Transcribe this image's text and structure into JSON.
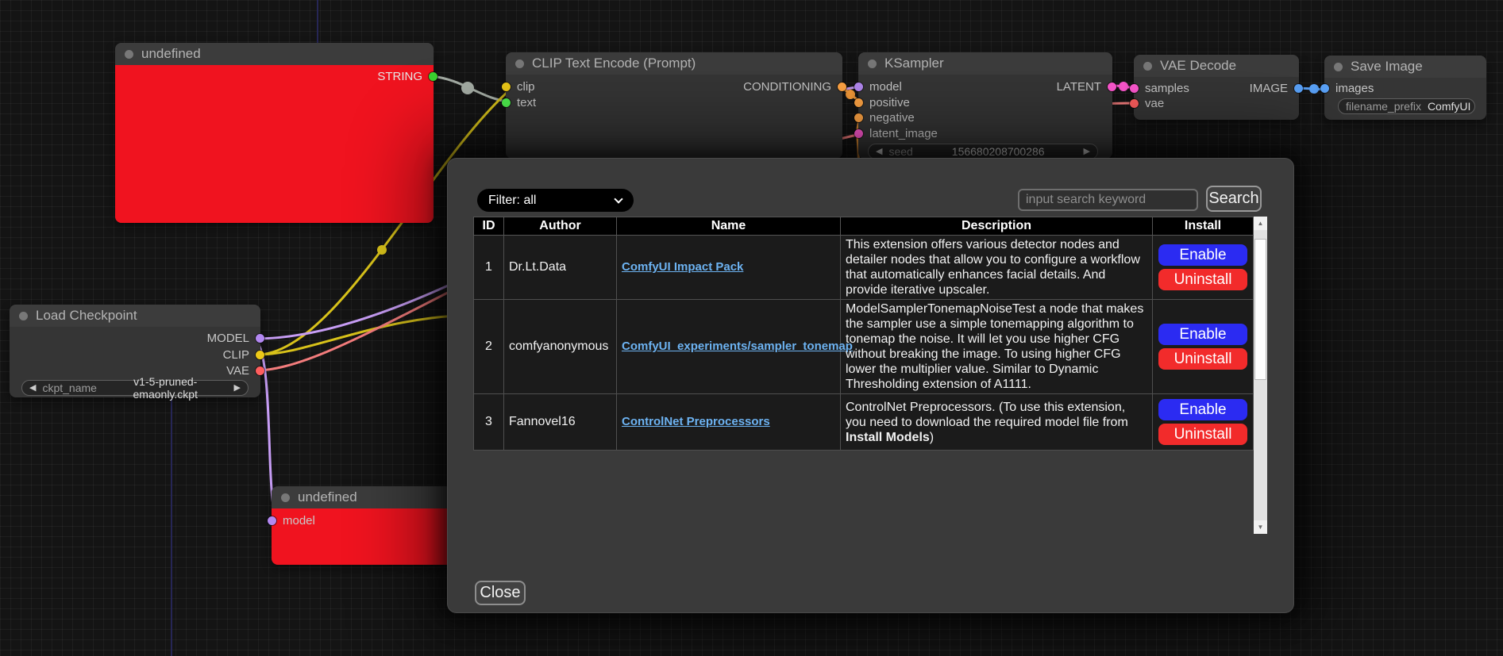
{
  "canvas": {
    "nodes": {
      "error_top": {
        "title": "undefined",
        "output": "STRING"
      },
      "clip_encode": {
        "title": "CLIP Text Encode (Prompt)",
        "inputs": [
          "clip",
          "text"
        ],
        "output": "CONDITIONING"
      },
      "ksampler": {
        "title": "KSampler",
        "inputs": [
          "model",
          "positive",
          "negative",
          "latent_image"
        ],
        "output": "LATENT",
        "widget": {
          "label": "seed",
          "value": "156680208700286"
        }
      },
      "vae_decode": {
        "title": "VAE Decode",
        "inputs": [
          "samples",
          "vae"
        ],
        "output": "IMAGE"
      },
      "save_image": {
        "title": "Save Image",
        "inputs": [
          "images"
        ],
        "widget": {
          "label": "filename_prefix",
          "value": "ComfyUI"
        }
      },
      "load_checkpoint": {
        "title": "Load Checkpoint",
        "outputs": [
          "MODEL",
          "CLIP",
          "VAE"
        ],
        "widget": {
          "label": "ckpt_name",
          "value": "v1-5-pruned-emaonly.ckpt"
        }
      },
      "error_bottom": {
        "title": "undefined",
        "input": "model"
      }
    }
  },
  "dialog": {
    "filter_label": "Filter: all",
    "search_placeholder": "input search keyword",
    "search_button": "Search",
    "close_button": "Close",
    "table": {
      "headers": [
        "ID",
        "Author",
        "Name",
        "Description",
        "Install"
      ],
      "rows": [
        {
          "id": "1",
          "author": "Dr.Lt.Data",
          "name": "ComfyUI Impact Pack",
          "description": [
            {
              "text": "This extension offers various detector nodes and detailer nodes that allow you to configure a workflow that automatically enhances facial details. And provide iterative upscaler.",
              "bold": false
            }
          ],
          "enable_label": "Enable",
          "uninstall_label": "Uninstall"
        },
        {
          "id": "2",
          "author": "comfyanonymous",
          "name": "ComfyUI_experiments/sampler_tonemap",
          "description": [
            {
              "text": "ModelSamplerTonemapNoiseTest a node that makes the sampler use a simple tonemapping algorithm to tonemap the noise. It will let you use higher CFG without breaking the image. To using higher CFG lower the multiplier value. Similar to Dynamic Thresholding extension of A1111.",
              "bold": false
            }
          ],
          "enable_label": "Enable",
          "uninstall_label": "Uninstall"
        },
        {
          "id": "3",
          "author": "Fannovel16",
          "name": "ControlNet Preprocessors",
          "description": [
            {
              "text": "ControlNet Preprocessors. (To use this extension, you need to download the required model file from ",
              "bold": false
            },
            {
              "text": "Install Models",
              "bold": true
            },
            {
              "text": ")",
              "bold": false
            }
          ],
          "enable_label": "Enable",
          "uninstall_label": "Uninstall"
        }
      ]
    }
  },
  "icons": {
    "widget_arrow_left": "◀",
    "widget_arrow_right": "▶",
    "scroll_up": "▲",
    "scroll_down": "▼"
  },
  "colors": {
    "enable_button": "#2b2bf2",
    "uninstall_button": "#f22b2b",
    "name_link": "#6db3f2",
    "error_node_body": "#f0131f",
    "wire_yellow": "#d8c21a",
    "wire_purple": "#c79df5",
    "wire_salmon": "#f37c7c",
    "wire_pink": "#ff58d0",
    "wire_orange": "#ffa13c",
    "wire_blue": "#5aa2f8",
    "wire_gray": "#a5ada5"
  }
}
